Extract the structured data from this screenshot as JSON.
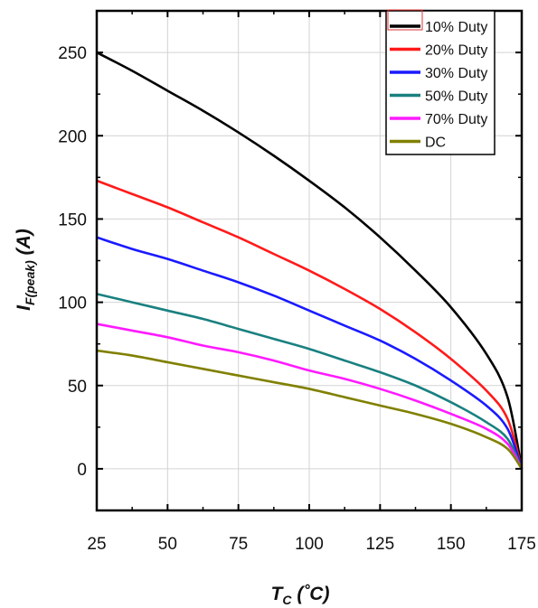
{
  "chart_data": {
    "type": "line",
    "xlabel": {
      "main": "T",
      "sub": "C",
      "unit": " (˚C)"
    },
    "ylabel": {
      "main": "I",
      "sub": "F(peak)",
      "unit": " (A)"
    },
    "xlim": [
      25,
      175
    ],
    "ylim": [
      -25,
      275
    ],
    "xticks": [
      25,
      50,
      75,
      100,
      125,
      150,
      175
    ],
    "yticks": [
      0,
      50,
      100,
      150,
      200,
      250
    ],
    "grid": true,
    "legend_position": "top-right",
    "x": [
      25,
      37.5,
      50,
      62.5,
      75,
      87.5,
      100,
      112.5,
      125,
      137.5,
      150,
      162.5,
      170,
      175
    ],
    "series": [
      {
        "name": "10% Duty",
        "color": "#000000",
        "values": [
          250,
          239,
          227,
          215,
          202,
          188,
          173,
          157,
          139,
          119,
          97,
          69,
          43,
          0
        ]
      },
      {
        "name": "20% Duty",
        "color": "#ff1a1a",
        "values": [
          173,
          165,
          157,
          148,
          139,
          129,
          119,
          108,
          96,
          82,
          66,
          47,
          30,
          0
        ]
      },
      {
        "name": "30% Duty",
        "color": "#1a1aff",
        "values": [
          139,
          132,
          126,
          119,
          112,
          104,
          95,
          86,
          77,
          66,
          53,
          38,
          24,
          0
        ]
      },
      {
        "name": "50% Duty",
        "color": "#1a8080",
        "values": [
          105,
          100,
          95,
          90,
          84,
          78,
          72,
          65,
          58,
          50,
          40,
          28,
          18,
          0
        ]
      },
      {
        "name": "70% Duty",
        "color": "#ff1aff",
        "values": [
          87,
          83,
          79,
          74,
          70,
          65,
          59,
          54,
          48,
          41,
          33,
          24,
          15,
          0
        ]
      },
      {
        "name": "DC",
        "color": "#808000",
        "values": [
          71,
          68,
          64,
          60,
          56,
          52,
          48,
          43,
          38,
          33,
          27,
          19,
          12,
          0
        ]
      }
    ]
  }
}
